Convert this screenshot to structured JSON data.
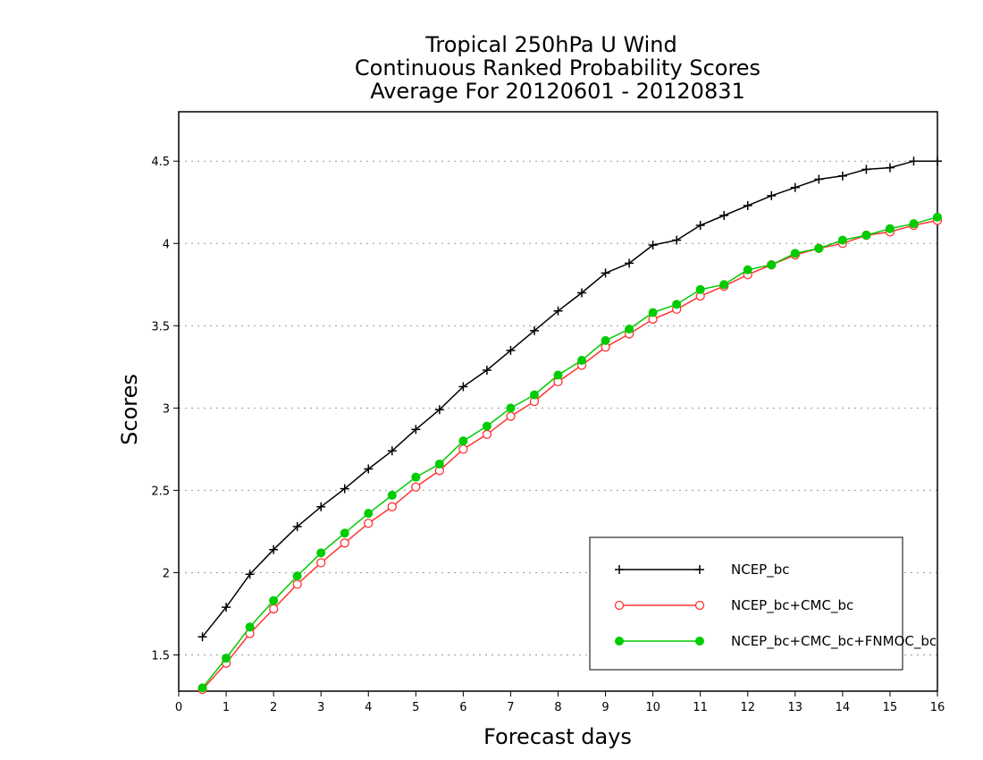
{
  "chart_data": {
    "type": "line",
    "title_lines": [
      "Tropical 250hPa U Wind",
      "Continuous Ranked Probability Scores",
      "Average For 20120601 - 20120831"
    ],
    "xlabel": "Forecast days",
    "ylabel": "Scores",
    "xlim": [
      0,
      16
    ],
    "ylim": [
      1.28,
      4.8
    ],
    "x_ticks": [
      "0",
      "1",
      "2",
      "3",
      "4",
      "5",
      "6",
      "7",
      "8",
      "9",
      "10",
      "11",
      "12",
      "13",
      "14",
      "15",
      "16"
    ],
    "y_ticks": [
      "1.5",
      "2",
      "2.5",
      "3",
      "3.5",
      "4",
      "4.5"
    ],
    "grid": "horizontal dotted",
    "legend_position": "bottom-right",
    "x": [
      0.5,
      1,
      1.5,
      2,
      2.5,
      3,
      3.5,
      4,
      4.5,
      5,
      5.5,
      6,
      6.5,
      7,
      7.5,
      8,
      8.5,
      9,
      9.5,
      10,
      10.5,
      11,
      11.5,
      12,
      12.5,
      13,
      13.5,
      14,
      14.5,
      15,
      15.5,
      16
    ],
    "series": [
      {
        "name": "NCEP_bc",
        "color": "#000000",
        "marker": "plus",
        "values": [
          1.61,
          1.79,
          1.99,
          2.14,
          2.28,
          2.4,
          2.51,
          2.63,
          2.74,
          2.87,
          2.99,
          3.13,
          3.23,
          3.35,
          3.47,
          3.59,
          3.7,
          3.82,
          3.88,
          3.99,
          4.02,
          4.11,
          4.17,
          4.23,
          4.29,
          4.34,
          4.39,
          4.41,
          4.45,
          4.46,
          4.5,
          4.5
        ]
      },
      {
        "name": "NCEP_bc+CMC_bc",
        "color": "#ff3333",
        "marker": "open-circle",
        "values": [
          1.29,
          1.45,
          1.63,
          1.78,
          1.93,
          2.06,
          2.18,
          2.3,
          2.4,
          2.52,
          2.62,
          2.75,
          2.84,
          2.95,
          3.04,
          3.16,
          3.26,
          3.37,
          3.45,
          3.54,
          3.6,
          3.68,
          3.74,
          3.81,
          3.87,
          3.93,
          3.97,
          4.0,
          4.05,
          4.07,
          4.11,
          4.14
        ]
      },
      {
        "name": "NCEP_bc+CMC_bc+FNMOC_bc",
        "color": "#00cc00",
        "marker": "filled-circle",
        "values": [
          1.3,
          1.48,
          1.67,
          1.83,
          1.98,
          2.12,
          2.24,
          2.36,
          2.47,
          2.58,
          2.66,
          2.8,
          2.89,
          3.0,
          3.08,
          3.2,
          3.29,
          3.41,
          3.48,
          3.58,
          3.63,
          3.72,
          3.75,
          3.84,
          3.87,
          3.94,
          3.97,
          4.02,
          4.05,
          4.09,
          4.12,
          4.16
        ]
      }
    ]
  }
}
